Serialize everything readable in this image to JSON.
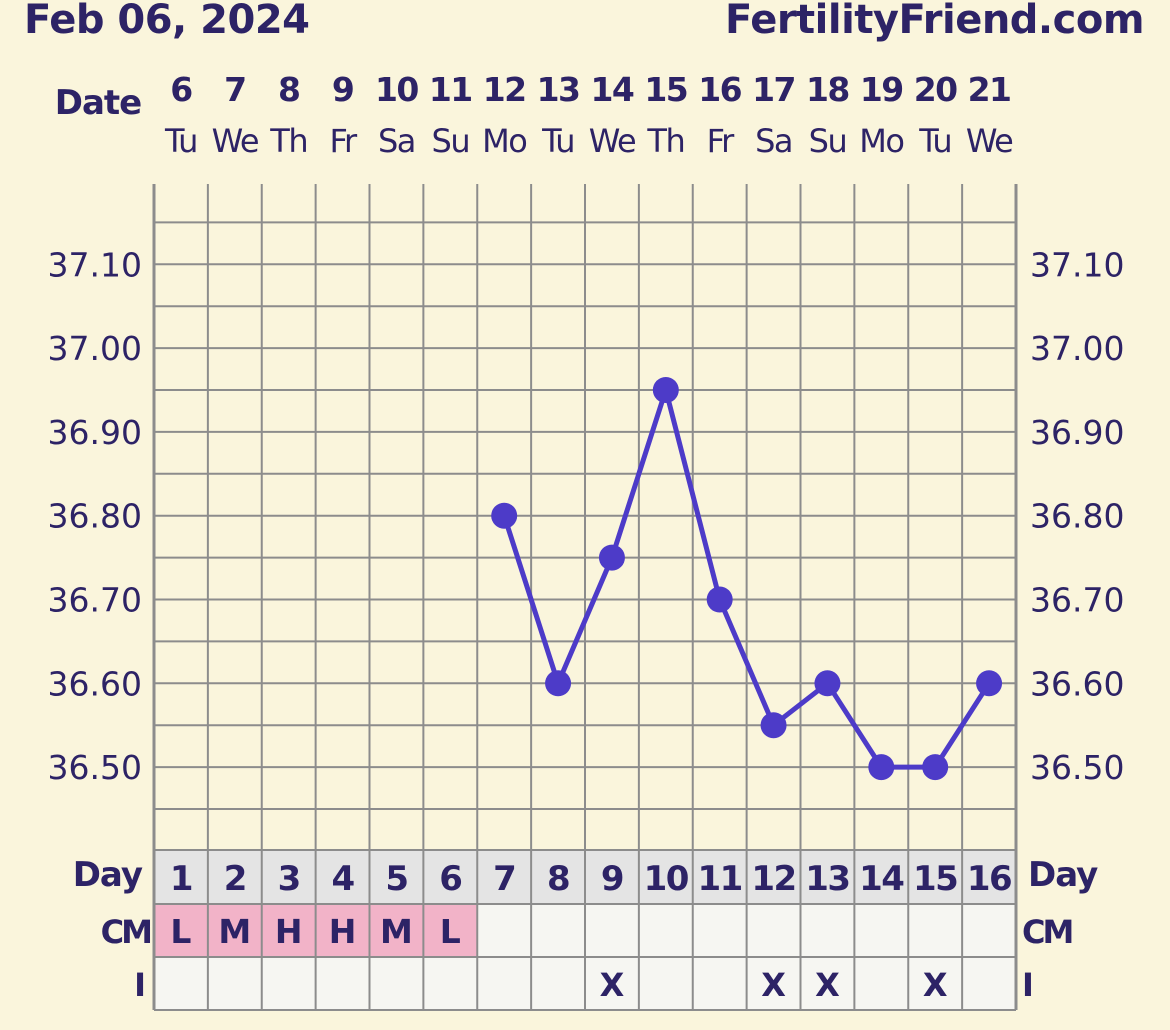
{
  "header": {
    "date_title": "Feb 06, 2024",
    "site": "FertilityFriend.com"
  },
  "colors": {
    "background": "#faf5dc",
    "text": "#2d2366",
    "series": "#4d3bc8",
    "grid": "#8c8c8c",
    "day_row": "#e4e4e4",
    "cell": "#f6f6f2",
    "cm_fill": "#f2b3c8"
  },
  "chart_data": {
    "type": "line",
    "row_labels": {
      "date": "Date",
      "day": "Day",
      "cm": "CM",
      "intercourse": "I"
    },
    "dates": [
      "6",
      "7",
      "8",
      "9",
      "10",
      "11",
      "12",
      "13",
      "14",
      "15",
      "16",
      "17",
      "18",
      "19",
      "20",
      "21"
    ],
    "weekdays": [
      "Tu",
      "We",
      "Th",
      "Fr",
      "Sa",
      "Su",
      "Mo",
      "Tu",
      "We",
      "Th",
      "Fr",
      "Sa",
      "Su",
      "Mo",
      "Tu",
      "We"
    ],
    "cycle_days": [
      "1",
      "2",
      "3",
      "4",
      "5",
      "6",
      "7",
      "8",
      "9",
      "10",
      "11",
      "12",
      "13",
      "14",
      "15",
      "16"
    ],
    "temperatures": [
      null,
      null,
      null,
      null,
      null,
      null,
      36.8,
      36.6,
      36.75,
      36.95,
      36.7,
      36.55,
      36.6,
      36.5,
      36.5,
      36.6
    ],
    "y_ticks": [
      "37.10",
      "37.00",
      "36.90",
      "36.80",
      "36.70",
      "36.60",
      "36.50"
    ],
    "ylim": [
      36.4,
      37.2
    ],
    "grid_step": 0.05,
    "cm": [
      "L",
      "M",
      "H",
      "H",
      "M",
      "L",
      "",
      "",
      "",
      "",
      "",
      "",
      "",
      "",
      "",
      ""
    ],
    "intercourse": [
      "",
      "",
      "",
      "",
      "",
      "",
      "",
      "",
      "X",
      "",
      "",
      "X",
      "X",
      "",
      "X",
      ""
    ]
  }
}
